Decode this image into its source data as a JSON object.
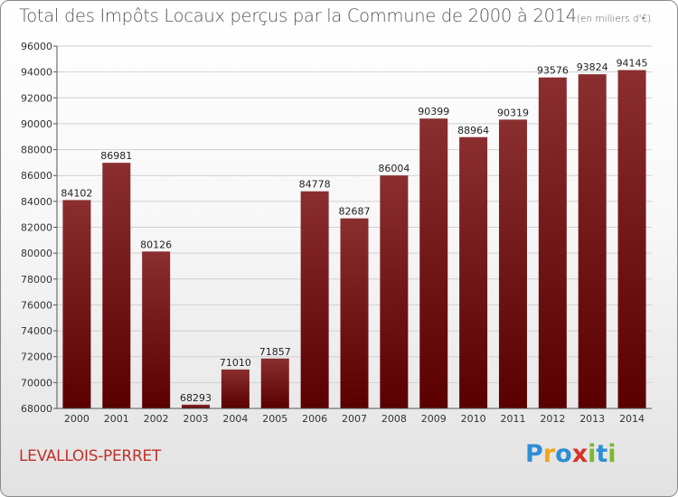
{
  "header": {
    "title": "Total des Impôts Locaux perçus par la Commune de 2000 à 2014",
    "unit": "(en milliers d'€)"
  },
  "footer": {
    "commune": "LEVALLOIS-PERRET",
    "logo_letters": [
      "P",
      "r",
      "o",
      "x",
      "i",
      "t",
      "i"
    ],
    "logo_colors": [
      "#2d8fd5",
      "#f2a51a",
      "#2d8fd5",
      "#d8322b",
      "#7cb82f",
      "#2d8fd5",
      "#7cb82f"
    ]
  },
  "colors": {
    "bar_top": "#8a2e30",
    "bar_bottom": "#5a0000",
    "grid": "#d0d0d0"
  },
  "chart_data": {
    "type": "bar",
    "title": "Total des Impôts Locaux perçus par la Commune de 2000 à 2014",
    "xlabel": "",
    "ylabel": "",
    "categories": [
      "2000",
      "2001",
      "2002",
      "2003",
      "2004",
      "2005",
      "2006",
      "2007",
      "2008",
      "2009",
      "2010",
      "2011",
      "2012",
      "2013",
      "2014"
    ],
    "values": [
      84102,
      86981,
      80126,
      68293,
      71010,
      71857,
      84778,
      82687,
      86004,
      90399,
      88964,
      90319,
      93576,
      93824,
      94145
    ],
    "ylim": [
      68000,
      96000
    ],
    "yticks": [
      68000,
      70000,
      72000,
      74000,
      76000,
      78000,
      80000,
      82000,
      84000,
      86000,
      88000,
      90000,
      92000,
      94000,
      96000
    ],
    "grid": true,
    "legend": "none"
  }
}
